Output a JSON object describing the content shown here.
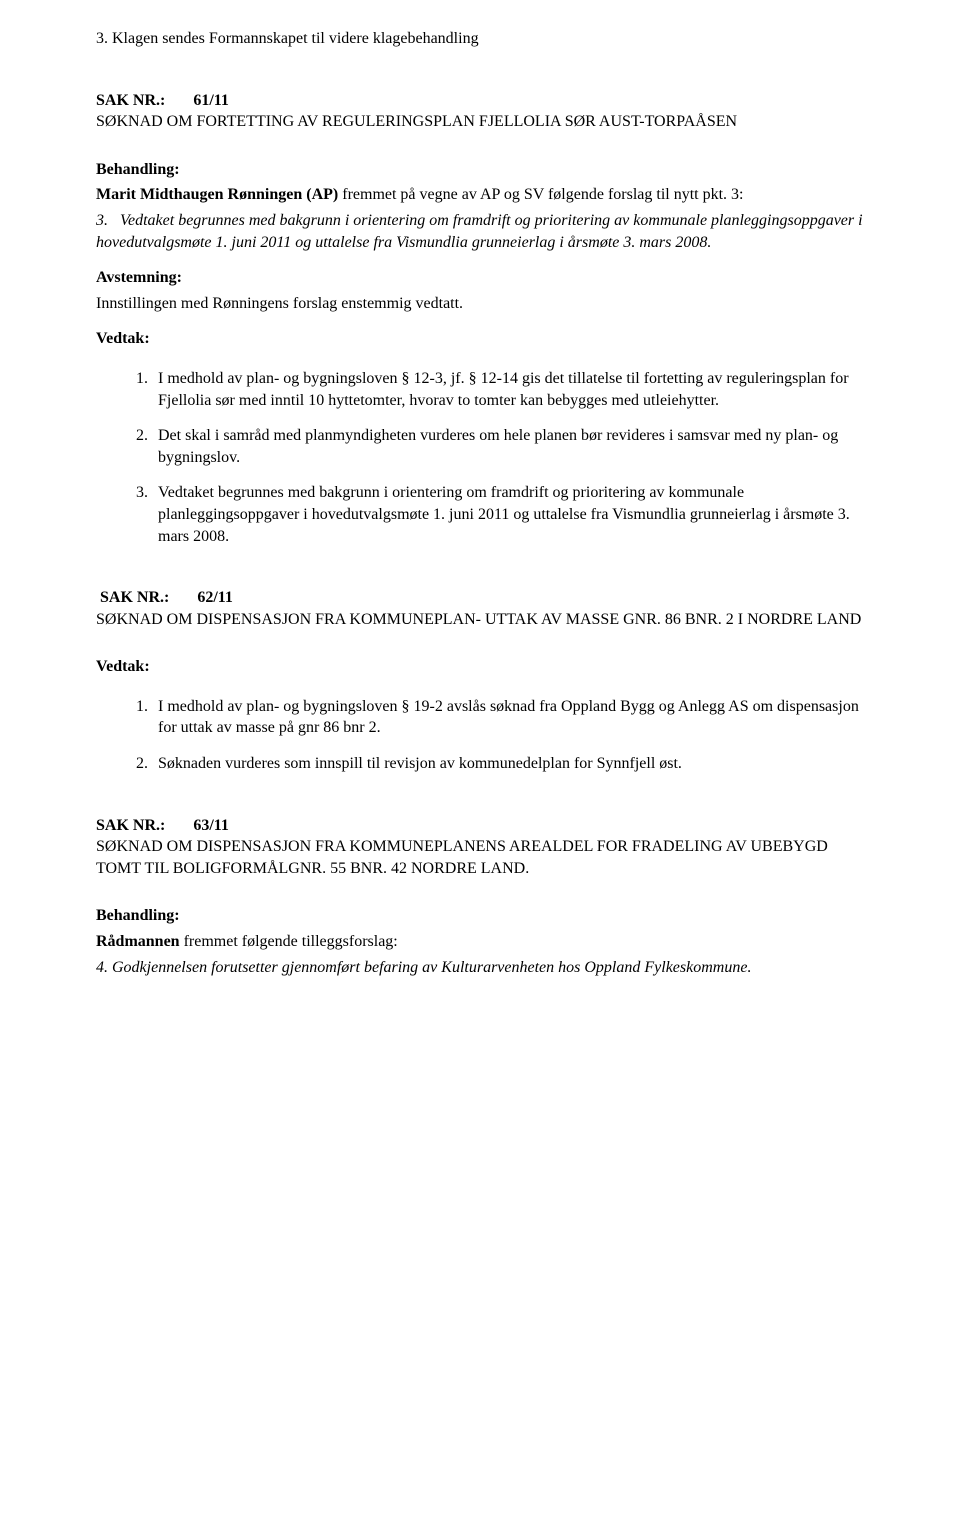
{
  "top_line": "3. Klagen sendes Formannskapet til videre klagebehandling",
  "sak61": {
    "nr_label": "SAK NR.:",
    "nr_value": "61/11",
    "title": "SØKNAD OM FORTETTING AV REGULERINGSPLAN FJELLOLIA SØR AUST-TORPAÅSEN",
    "behandling_label": "Behandling:",
    "behandling_intro_bold": "Marit Midthaugen Rønningen (AP)",
    "behandling_intro_rest": " fremmet på vegne av AP og SV følgende forslag til nytt pkt. 3:",
    "pkt3_num": "3.",
    "pkt3_text": "Vedtaket begrunnes med bakgrunn i orientering om framdrift og prioritering av kommunale planleggingsoppgaver i hovedutvalgsmøte 1. juni 2011 og uttalelse fra Vismundlia grunneierlag i årsmøte 3. mars 2008.",
    "avstemning_label": "Avstemning:",
    "avstemning_text": "Innstillingen med Rønningens forslag enstemmig vedtatt.",
    "vedtak_label": "Vedtak:",
    "list": [
      "I medhold av plan- og bygningsloven § 12-3, jf. § 12-14 gis det tillatelse til fortetting av reguleringsplan for Fjellolia sør med inntil 10 hyttetomter, hvorav to tomter kan bebygges med utleiehytter.",
      "Det skal i samråd med planmyndigheten vurderes om hele planen bør revideres i samsvar med ny plan- og bygningslov.",
      "Vedtaket begrunnes med bakgrunn i orientering om framdrift og prioritering av kommunale planleggingsoppgaver i hovedutvalgsmøte 1. juni 2011 og uttalelse fra Vismundlia grunneierlag i årsmøte 3. mars 2008."
    ]
  },
  "sak62": {
    "nr_label": "SAK NR.:",
    "nr_value": "62/11",
    "title": "SØKNAD OM DISPENSASJON FRA KOMMUNEPLAN- UTTAK AV MASSE GNR. 86 BNR. 2 I NORDRE LAND",
    "vedtak_label": "Vedtak:",
    "list": [
      "I medhold av plan- og bygningsloven § 19-2 avslås søknad fra Oppland Bygg og Anlegg AS om dispensasjon for uttak av masse på gnr 86 bnr 2.",
      "Søknaden vurderes som innspill til revisjon av kommunedelplan for Synnfjell øst."
    ]
  },
  "sak63": {
    "nr_label": "SAK NR.:",
    "nr_value": "63/11",
    "title": "SØKNAD OM DISPENSASJON FRA KOMMUNEPLANENS AREALDEL FOR FRADELING AV UBEBYGD TOMT TIL BOLIGFORMÅLGNR. 55 BNR. 42 NORDRE LAND.",
    "behandling_label": "Behandling:",
    "behandling_intro_bold": "Rådmannen",
    "behandling_intro_rest": " fremmet følgende tilleggsforslag:",
    "pkt4_num": "4.",
    "pkt4_text": " Godkjennelsen forutsetter gjennomført befaring av Kulturarvenheten hos Oppland Fylkeskommune."
  }
}
